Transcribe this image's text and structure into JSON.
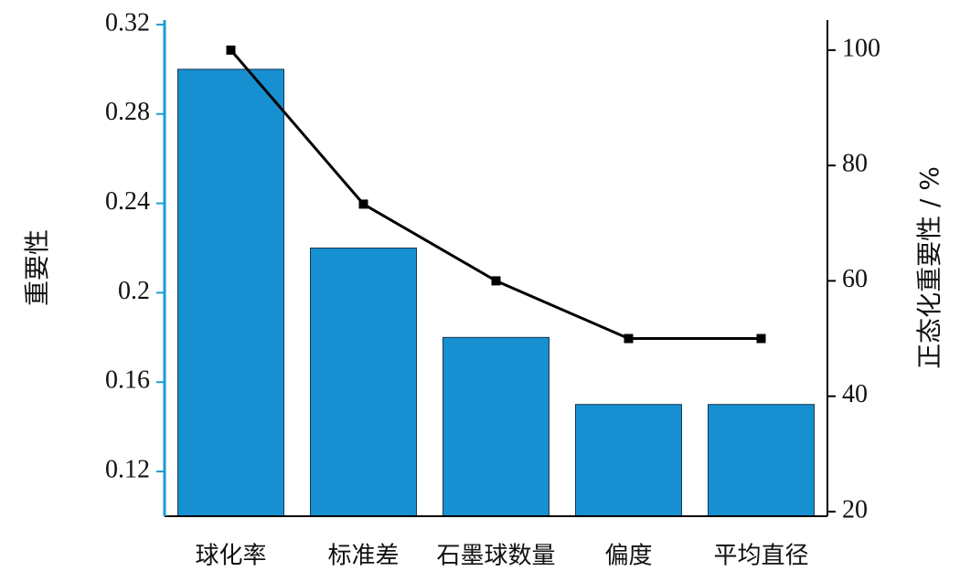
{
  "chart_data": {
    "type": "bar",
    "y_label": "重要性",
    "y2_label": "正态化重要性 / %",
    "categories": [
      "球化率",
      "标准差",
      "石墨球数量",
      "偏度",
      "平均直径"
    ],
    "series": [
      {
        "type": "bar",
        "color": "#1790d2",
        "values": [
          0.3,
          0.22,
          0.18,
          0.15,
          0.15
        ]
      },
      {
        "type": "line",
        "axis": "y2",
        "color": "#000000",
        "values": [
          100,
          73.3,
          60,
          50,
          50
        ]
      }
    ],
    "ylim": [
      0.1,
      0.322
    ],
    "yticks": [
      0.12,
      0.16,
      0.2,
      0.24,
      0.28,
      0.32
    ],
    "y2lim": [
      19.2,
      105.2
    ],
    "y2ticks": [
      20,
      40,
      60,
      80,
      100
    ],
    "left_axis_color": "#1a9ad6"
  }
}
